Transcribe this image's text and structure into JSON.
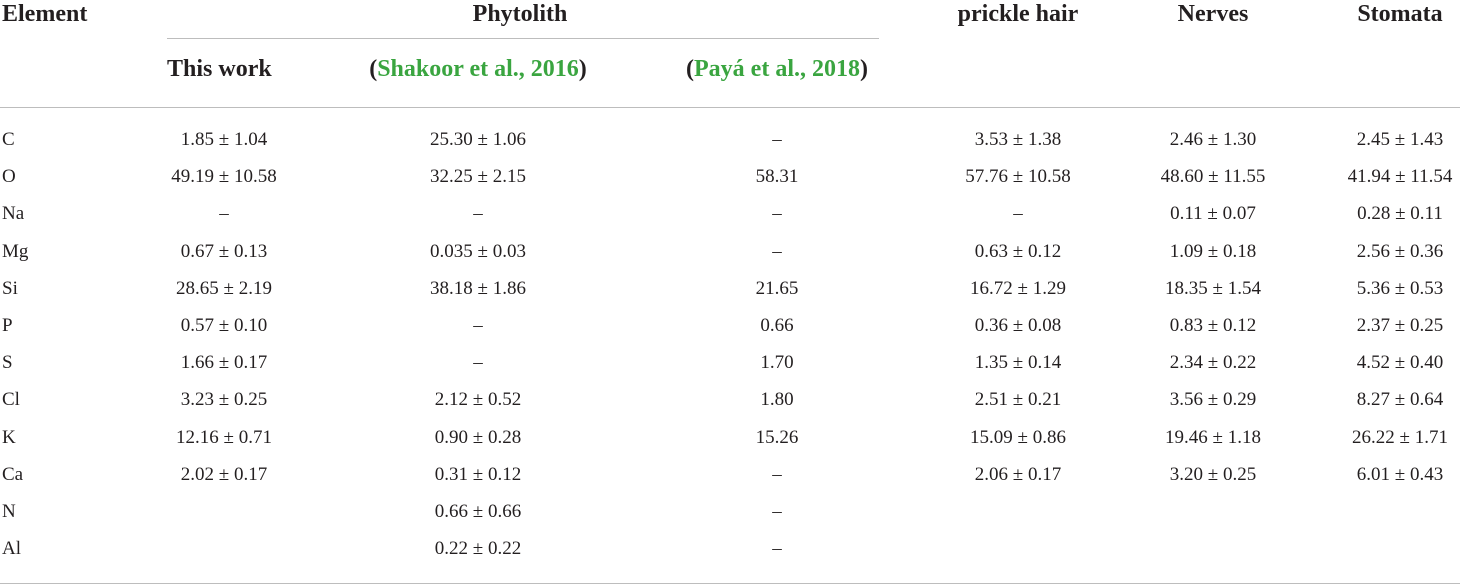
{
  "header": {
    "element": "Element",
    "phytolith": "Phytolith",
    "prickle_hair": "prickle hair",
    "nerves": "Nerves",
    "stomata": "Stomata",
    "sub": {
      "this_work": "This work",
      "shakoor_open": "(",
      "shakoor_cite": "Shakoor et al., 2016",
      "shakoor_close": ")",
      "paya_open": "(",
      "paya_cite": "Payá et al., 2018",
      "paya_close": ")"
    }
  },
  "rows": [
    {
      "element": "C",
      "this_work": "1.85 ± 1.04",
      "shakoor": "25.30 ± 1.06",
      "paya": "–",
      "prickle": "3.53 ± 1.38",
      "nerves": "2.46 ± 1.30",
      "stomata": "2.45 ± 1.43"
    },
    {
      "element": "O",
      "this_work": "49.19 ± 10.58",
      "shakoor": "32.25 ± 2.15",
      "paya": "58.31",
      "prickle": "57.76 ± 10.58",
      "nerves": "48.60 ± 11.55",
      "stomata": "41.94 ± 11.54"
    },
    {
      "element": "Na",
      "this_work": "–",
      "shakoor": "–",
      "paya": "–",
      "prickle": "–",
      "nerves": "0.11 ± 0.07",
      "stomata": "0.28 ± 0.11"
    },
    {
      "element": "Mg",
      "this_work": "0.67 ± 0.13",
      "shakoor": "0.035 ± 0.03",
      "paya": "–",
      "prickle": "0.63 ± 0.12",
      "nerves": "1.09 ± 0.18",
      "stomata": "2.56 ± 0.36"
    },
    {
      "element": "Si",
      "this_work": "28.65 ± 2.19",
      "shakoor": "38.18 ± 1.86",
      "paya": "21.65",
      "prickle": "16.72 ± 1.29",
      "nerves": "18.35 ± 1.54",
      "stomata": "5.36 ± 0.53"
    },
    {
      "element": "P",
      "this_work": "0.57 ± 0.10",
      "shakoor": "–",
      "paya": "0.66",
      "prickle": "0.36 ± 0.08",
      "nerves": "0.83 ± 0.12",
      "stomata": "2.37 ± 0.25"
    },
    {
      "element": "S",
      "this_work": "1.66 ± 0.17",
      "shakoor": "–",
      "paya": "1.70",
      "prickle": "1.35 ± 0.14",
      "nerves": "2.34 ± 0.22",
      "stomata": "4.52 ± 0.40"
    },
    {
      "element": "Cl",
      "this_work": "3.23 ± 0.25",
      "shakoor": "2.12 ± 0.52",
      "paya": "1.80",
      "prickle": "2.51 ± 0.21",
      "nerves": "3.56 ± 0.29",
      "stomata": "8.27 ± 0.64"
    },
    {
      "element": "K",
      "this_work": "12.16 ± 0.71",
      "shakoor": "0.90 ± 0.28",
      "paya": "15.26",
      "prickle": "15.09 ± 0.86",
      "nerves": "19.46 ± 1.18",
      "stomata": "26.22 ± 1.71"
    },
    {
      "element": "Ca",
      "this_work": "2.02 ± 0.17",
      "shakoor": "0.31 ± 0.12",
      "paya": "–",
      "prickle": "2.06 ± 0.17",
      "nerves": "3.20 ± 0.25",
      "stomata": "6.01 ± 0.43"
    },
    {
      "element": "N",
      "this_work": "",
      "shakoor": "0.66 ± 0.66",
      "paya": "–",
      "prickle": "",
      "nerves": "",
      "stomata": ""
    },
    {
      "element": "Al",
      "this_work": "",
      "shakoor": "0.22 ± 0.22",
      "paya": "–",
      "prickle": "",
      "nerves": "",
      "stomata": ""
    }
  ],
  "colors": {
    "text": "#231f20",
    "citation": "#3aa540",
    "rule": "#bdbdbd"
  }
}
